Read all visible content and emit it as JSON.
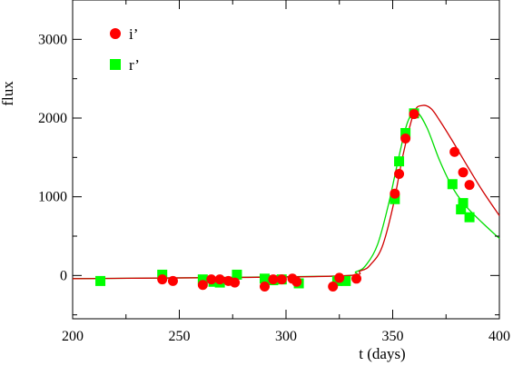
{
  "chart_data": {
    "type": "scatter",
    "xlabel": "t (days)",
    "ylabel": "flux",
    "xlim": [
      200,
      400
    ],
    "ylim": [
      -550,
      3500
    ],
    "xticks": [
      200,
      250,
      300,
      350,
      400
    ],
    "xtick_labels": [
      "200",
      "250",
      "300",
      "350",
      "400"
    ],
    "yticks": [
      0,
      1000,
      2000,
      3000
    ],
    "ytick_labels": [
      "0",
      "1000",
      "2000",
      "3000"
    ],
    "grid": false,
    "legend_position": "top-left",
    "series": [
      {
        "name": "i’",
        "marker": "circle",
        "color": "#ff0000",
        "points": [
          [
            242,
            -50
          ],
          [
            247,
            -70
          ],
          [
            261,
            -120
          ],
          [
            265,
            -50
          ],
          [
            269,
            -50
          ],
          [
            273,
            -70
          ],
          [
            276,
            -90
          ],
          [
            290,
            -140
          ],
          [
            294,
            -50
          ],
          [
            298,
            -50
          ],
          [
            303,
            -40
          ],
          [
            305,
            -80
          ],
          [
            322,
            -140
          ],
          [
            325,
            -30
          ],
          [
            333,
            -40
          ],
          [
            351,
            1040
          ],
          [
            353,
            1290
          ],
          [
            356,
            1740
          ],
          [
            360,
            2050
          ],
          [
            379,
            1570
          ],
          [
            383,
            1310
          ],
          [
            386,
            1150
          ]
        ],
        "model_curve": [
          [
            200,
            -40
          ],
          [
            320,
            -10
          ],
          [
            335,
            60
          ],
          [
            340,
            150
          ],
          [
            345,
            360
          ],
          [
            350,
            860
          ],
          [
            355,
            1550
          ],
          [
            360,
            2070
          ],
          [
            364,
            2160
          ],
          [
            368,
            2120
          ],
          [
            372,
            1970
          ],
          [
            378,
            1710
          ],
          [
            385,
            1390
          ],
          [
            392,
            1080
          ],
          [
            400,
            760
          ]
        ]
      },
      {
        "name": "r’",
        "marker": "square",
        "color": "#00ff00",
        "points": [
          [
            213,
            -70
          ],
          [
            242,
            10
          ],
          [
            261,
            -50
          ],
          [
            266,
            -80
          ],
          [
            269,
            -90
          ],
          [
            277,
            10
          ],
          [
            290,
            -40
          ],
          [
            294,
            -60
          ],
          [
            298,
            -50
          ],
          [
            306,
            -100
          ],
          [
            324,
            -70
          ],
          [
            328,
            -70
          ],
          [
            351,
            970
          ],
          [
            353,
            1450
          ],
          [
            356,
            1810
          ],
          [
            360,
            2060
          ],
          [
            378,
            1160
          ],
          [
            382,
            840
          ],
          [
            383,
            920
          ],
          [
            386,
            740
          ]
        ],
        "model_curve": [
          [
            200,
            -40
          ],
          [
            320,
            -10
          ],
          [
            333,
            50
          ],
          [
            338,
            150
          ],
          [
            343,
            400
          ],
          [
            348,
            900
          ],
          [
            353,
            1520
          ],
          [
            357,
            1950
          ],
          [
            361,
            2080
          ],
          [
            366,
            1880
          ],
          [
            372,
            1460
          ],
          [
            378,
            1120
          ],
          [
            384,
            890
          ],
          [
            392,
            670
          ],
          [
            400,
            470
          ]
        ]
      }
    ]
  }
}
